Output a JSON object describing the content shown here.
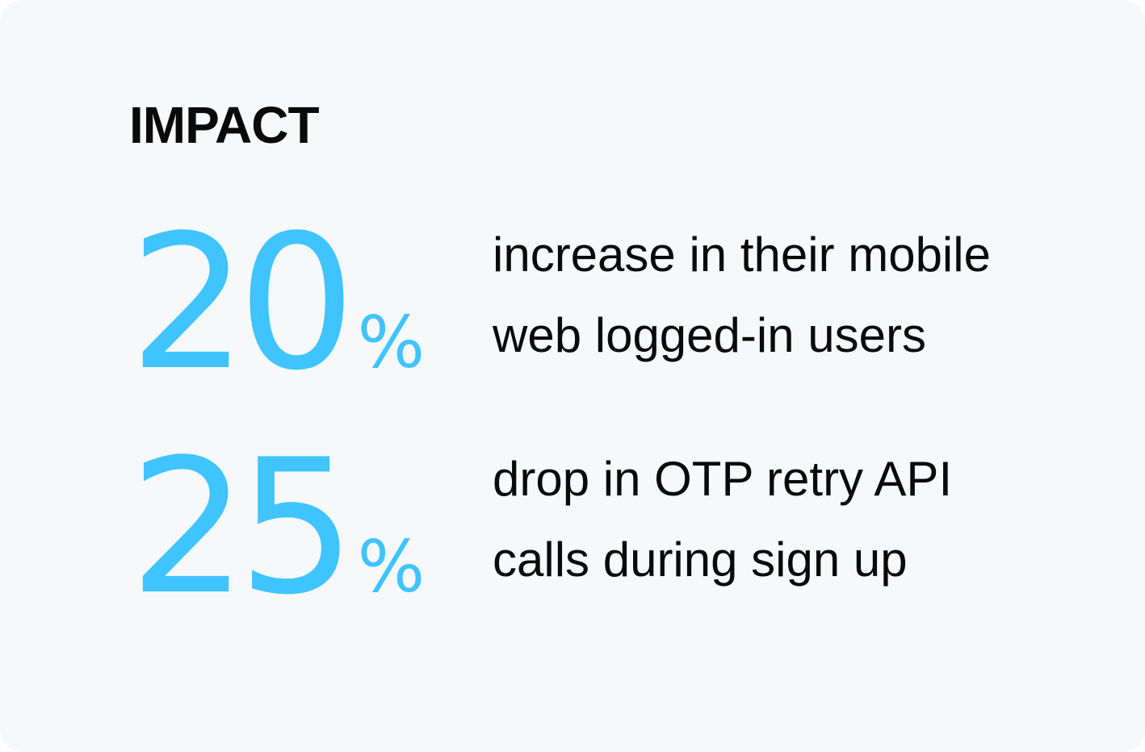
{
  "title": "IMPACT",
  "accent_color": "#40c4ff",
  "stats": [
    {
      "value": "20",
      "unit": "%",
      "line1": "increase in their mobile",
      "line2": "web logged-in users"
    },
    {
      "value": "25",
      "unit": "%",
      "line1": "drop in OTP retry API",
      "line2": "calls during sign up"
    }
  ]
}
